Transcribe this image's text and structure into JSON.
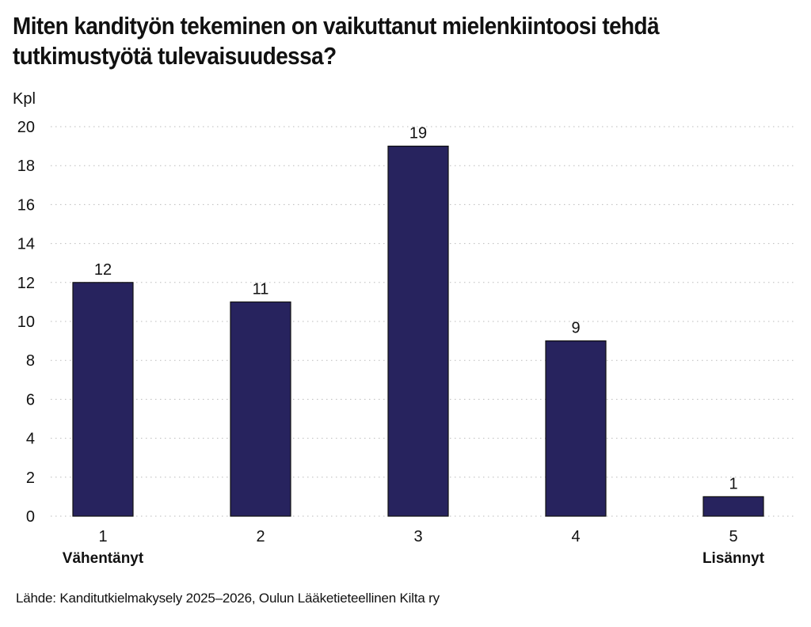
{
  "chart_data": {
    "type": "bar",
    "title": "Miten kandityön tekeminen on vaikuttanut mielenkiintoosi tehdä tutkimustyötä tulevaisuudessa?",
    "ylabel": "Kpl",
    "xlabel": "",
    "categories": [
      "1",
      "2",
      "3",
      "4",
      "5"
    ],
    "category_sublabels": [
      "Vähentänyt",
      "",
      "",
      "",
      "Lisännyt"
    ],
    "values": [
      12,
      11,
      19,
      9,
      1
    ],
    "data_labels": [
      "12",
      "11",
      "19",
      "9",
      "1"
    ],
    "ylim": [
      0,
      20
    ],
    "yticks": [
      0,
      2,
      4,
      6,
      8,
      10,
      12,
      14,
      16,
      18,
      20
    ],
    "grid": true,
    "legend": "none",
    "bar_color": "#27235e",
    "bar_outline": "#111111",
    "grid_color": "#bbbbbb",
    "source": "Lähde: Kanditutkielmakysely 2025–2026, Oulun Lääketieteellinen Kilta ry"
  }
}
